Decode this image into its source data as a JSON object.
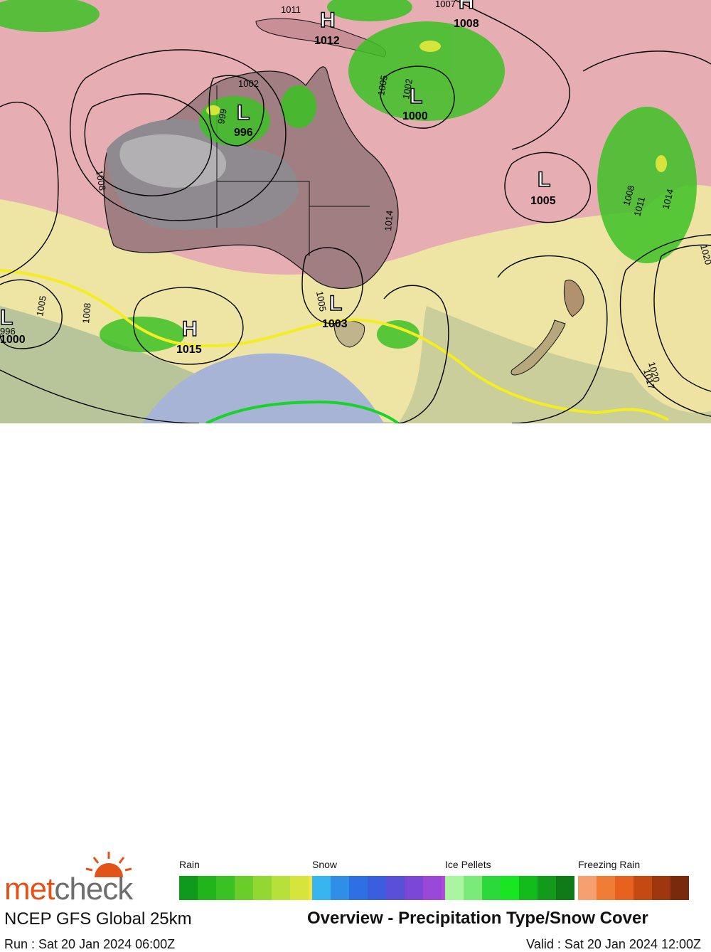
{
  "map": {
    "pressure_centers": [
      {
        "type": "H",
        "value": "1012"
      },
      {
        "type": "H",
        "value": "1008"
      },
      {
        "type": "L",
        "value": "996"
      },
      {
        "type": "L",
        "value": "1000"
      },
      {
        "type": "L",
        "value": "1005"
      },
      {
        "type": "L",
        "value": "1003"
      },
      {
        "type": "H",
        "value": "1015"
      },
      {
        "type": "L",
        "value": "1000"
      }
    ],
    "isobar_labels": [
      "1011",
      "1007",
      "1002",
      "1005",
      "999",
      "1002",
      "1008",
      "1011",
      "1014",
      "1008",
      "1005",
      "1014",
      "1020",
      "1017",
      "1020",
      "1008",
      "1005",
      "996"
    ]
  },
  "footer": {
    "logo_part1": "met",
    "logo_part2": "check",
    "model": "NCEP GFS Global 25km",
    "run": "Run : Sat 20 Jan 2024 06:00Z",
    "valid": "Valid : Sat 20 Jan 2024 12:00Z",
    "title": "Overview - Precipitation Type/Snow Cover"
  },
  "legend": [
    {
      "label": "Rain",
      "colors": [
        "#0f9a1e",
        "#22b51b",
        "#3cc124",
        "#6bcd2a",
        "#93d733",
        "#b7e13a",
        "#d6e43c",
        "#efe646"
      ]
    },
    {
      "label": "Snow",
      "colors": [
        "#38b5ee",
        "#2f8ee8",
        "#2e6fe3",
        "#3b5ede",
        "#5a4fd8",
        "#7a47d6",
        "#9a48d8",
        "#b04ad6"
      ]
    },
    {
      "label": "Ice Pellets",
      "colors": [
        "#aaf5a0",
        "#7aeb7a",
        "#2dd83a",
        "#19e623",
        "#14bb1c",
        "#129a1a",
        "#0f7a16"
      ]
    },
    {
      "label": "Freezing Rain",
      "colors": [
        "#f6a070",
        "#ef7d37",
        "#e8611e",
        "#c44a12",
        "#9e3710",
        "#7a2a0c"
      ]
    }
  ]
}
